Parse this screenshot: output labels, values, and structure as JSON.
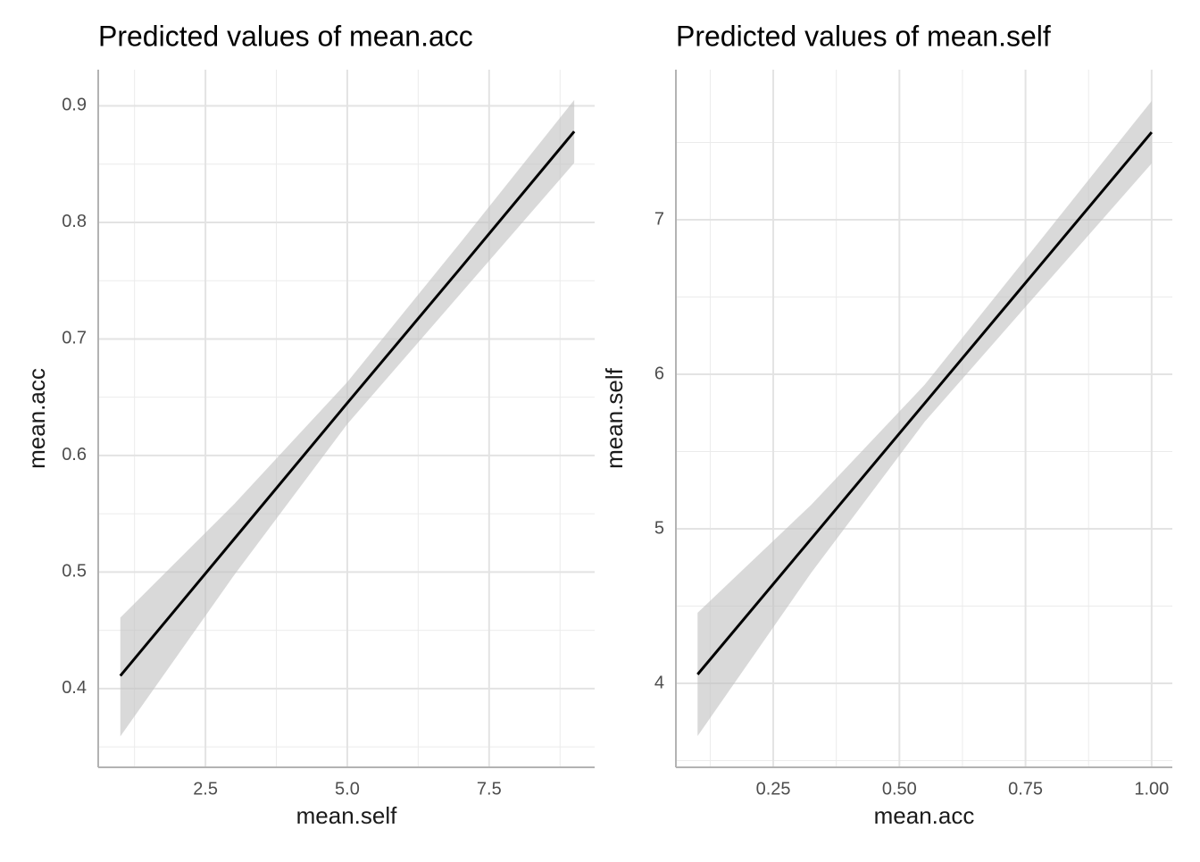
{
  "chart_data": [
    {
      "type": "line",
      "title": "Predicted values of mean.acc",
      "x_label": "mean.self",
      "y_label": "mean.acc",
      "x": [
        1,
        3,
        5,
        7,
        9
      ],
      "series": [
        {
          "color": "#000000",
          "band_color": "#bfbfbf",
          "values": [
            0.411,
            0.528,
            0.645,
            0.761,
            0.878
          ],
          "lower": [
            0.359,
            0.497,
            0.627,
            0.739,
            0.851
          ],
          "upper": [
            0.461,
            0.558,
            0.663,
            0.783,
            0.905
          ]
        }
      ],
      "xlim": [
        0.61,
        9.36
      ],
      "ylim": [
        0.3325,
        0.931
      ],
      "xticks": [
        {
          "value": 2.5,
          "label": "2.5"
        },
        {
          "value": 5,
          "label": "5.0"
        },
        {
          "value": 7.5,
          "label": "7.5"
        }
      ],
      "yticks": [
        0.4,
        0.5,
        0.6,
        0.7,
        0.8,
        0.9
      ],
      "grid": true
    },
    {
      "type": "line",
      "title": "Predicted values of mean.self",
      "x_label": "mean.acc",
      "y_label": "mean.self",
      "x": [
        0.1,
        0.325,
        0.55,
        0.775,
        1.0
      ],
      "series": [
        {
          "color": "#000000",
          "band_color": "#bfbfbf",
          "values": [
            4.058,
            4.935,
            5.812,
            6.689,
            7.566
          ],
          "lower": [
            3.659,
            4.715,
            5.692,
            6.529,
            7.364
          ],
          "upper": [
            4.457,
            5.155,
            5.932,
            6.849,
            7.769
          ]
        }
      ],
      "xlim": [
        0.057,
        1.041
      ],
      "ylim": [
        3.457,
        7.971
      ],
      "xticks": [
        {
          "value": 0.25,
          "label": "0.25"
        },
        {
          "value": 0.5,
          "label": "0.50"
        },
        {
          "value": 0.75,
          "label": "0.75"
        },
        {
          "value": 1.0,
          "label": "1.00"
        }
      ],
      "yticks": [
        4,
        5,
        6,
        7
      ],
      "grid": true
    }
  ]
}
